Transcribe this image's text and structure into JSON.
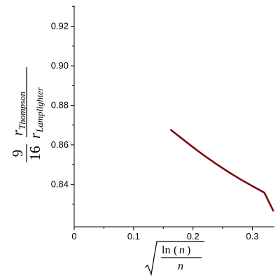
{
  "chart_data": {
    "type": "line",
    "series": [
      {
        "color": "#7a0c12",
        "x": [
          0.163,
          0.18,
          0.2,
          0.22,
          0.24,
          0.26,
          0.28,
          0.3,
          0.32,
          0.335
        ],
        "y": [
          0.8675,
          0.8635,
          0.8588,
          0.8543,
          0.8501,
          0.8462,
          0.8425,
          0.8391,
          0.8358,
          0.8267
        ]
      }
    ],
    "xlim": [
      0,
      0.337
    ],
    "ylim": [
      0.8185,
      0.9305
    ],
    "xticks": [
      {
        "value": 0,
        "label": "0"
      },
      {
        "value": 0.1,
        "label": "0.1"
      },
      {
        "value": 0.2,
        "label": "0.2"
      },
      {
        "value": 0.3,
        "label": "0.3"
      }
    ],
    "yticks": [
      {
        "value": 0.84,
        "label": "0.84"
      },
      {
        "value": 0.86,
        "label": "0.86"
      },
      {
        "value": 0.88,
        "label": "0.88"
      },
      {
        "value": 0.9,
        "label": "0.90"
      },
      {
        "value": 0.92,
        "label": "0.92"
      }
    ],
    "ylabel": {
      "frac_num": "9",
      "frac_den": "16",
      "r": "r",
      "sub_num": "Thompson",
      "sub_den": "Lamplighter"
    },
    "xlabel": {
      "ln": "ln",
      "paren_open": "(",
      "n_top": "n",
      "paren_close": ")",
      "n_bottom": "n"
    },
    "grid": false,
    "legend": "none"
  }
}
